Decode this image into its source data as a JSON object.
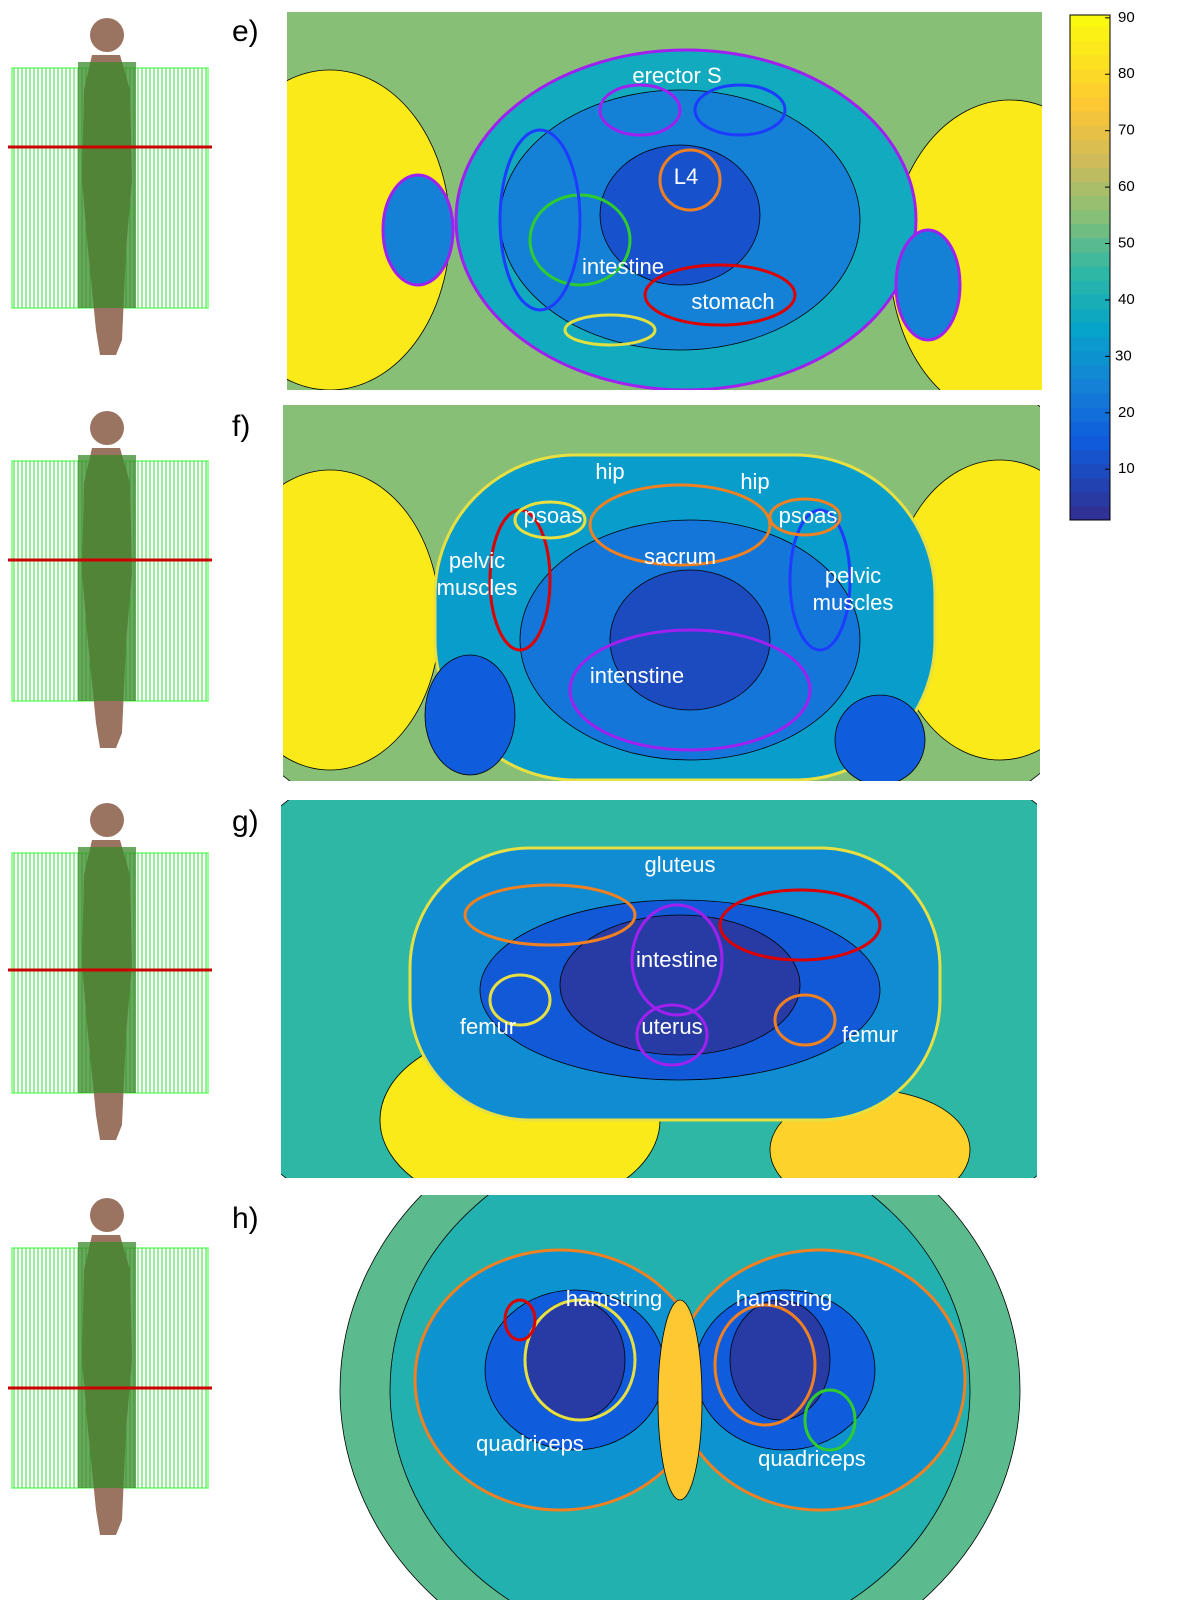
{
  "panels": [
    {
      "label": "e)",
      "annotations": [
        [
          "erector S"
        ],
        [
          "L4"
        ],
        [
          "intestine"
        ],
        [
          "stomach"
        ]
      ]
    },
    {
      "label": "f)",
      "annotations": [
        [
          "hip"
        ],
        [
          "hip"
        ],
        [
          "psoas"
        ],
        [
          "psoas"
        ],
        [
          "pelvic",
          "muscles"
        ],
        [
          "sacrum"
        ],
        [
          "pelvic",
          "muscles"
        ],
        [
          "intenstine"
        ]
      ]
    },
    {
      "label": "g)",
      "annotations": [
        [
          "gluteus"
        ],
        [
          "intestine"
        ],
        [
          "femur"
        ],
        [
          "uterus"
        ],
        [
          "femur"
        ]
      ]
    },
    {
      "label": "h)",
      "annotations": [
        [
          "hamstring"
        ],
        [
          "hamstring"
        ],
        [
          "quadriceps"
        ],
        [
          "quadriceps"
        ]
      ]
    }
  ],
  "colorbar": {
    "colormap": "parula",
    "lim": [
      1,
      90.5
    ],
    "ticks": [
      10,
      20,
      30,
      40,
      50,
      60,
      70,
      80,
      90
    ],
    "highlight": 30
  }
}
